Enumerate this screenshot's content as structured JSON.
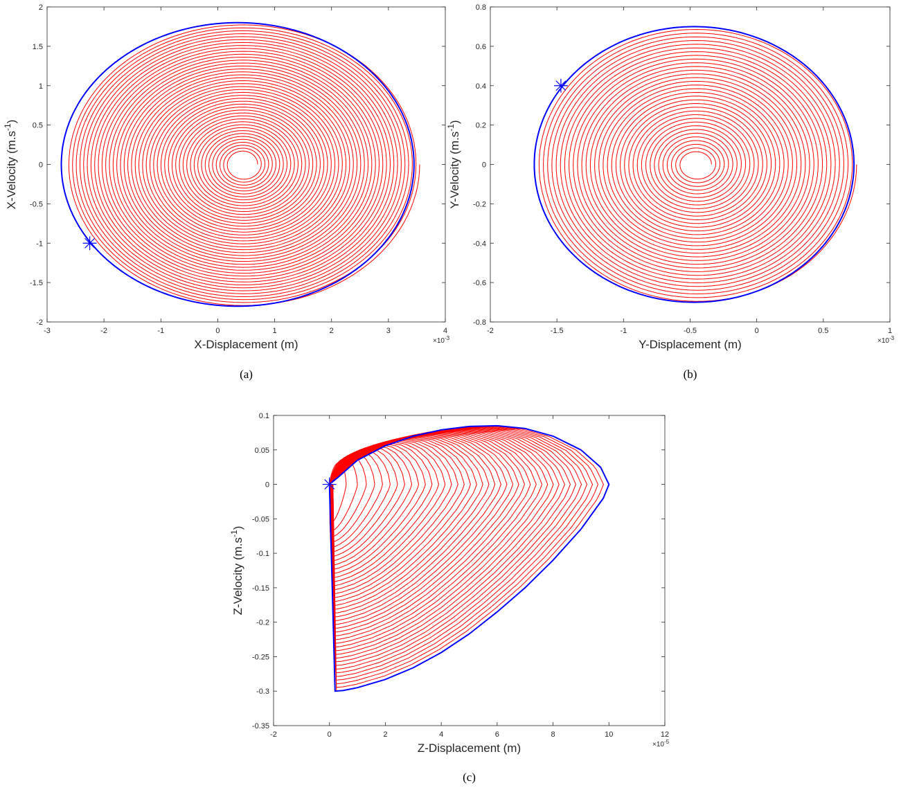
{
  "chart_data": [
    {
      "type": "line",
      "panel": "a",
      "caption": "(a)",
      "xlabel": "X-Displacement (m)",
      "ylabel_main": "X-Velocity (m.s",
      "ylabel_sup": "-1",
      "ylabel_tail": ")",
      "x_exponent": "×10",
      "x_exponent_sup": "-3",
      "xlim": [
        -3,
        4
      ],
      "ylim": [
        -2,
        2
      ],
      "xticks": [
        -3,
        -2,
        -1,
        0,
        1,
        2,
        3,
        4
      ],
      "xtick_labels": [
        "-3",
        "-2",
        "-1",
        "0",
        "1",
        "2",
        "3",
        "4"
      ],
      "yticks": [
        -2,
        -1.5,
        -1,
        -0.5,
        0,
        0.5,
        1,
        1.5,
        2
      ],
      "ytick_labels": [
        "-2",
        "-1.5",
        "-1",
        "-0.5",
        "0",
        "0.5",
        "1",
        "1.5",
        "2"
      ],
      "series": [
        {
          "color": "#ff0000",
          "center": [
            0.45,
            0.0
          ],
          "inner_radius": [
            0.25,
            0.16
          ],
          "outer_radius": [
            3.1,
            1.8
          ],
          "turns": 44,
          "shape": "spiral"
        },
        {
          "color": "#0000ff",
          "center": [
            0.35,
            0.0
          ],
          "radius": [
            3.1,
            1.8
          ],
          "shape": "limit-cycle"
        }
      ],
      "marker": {
        "x": -2.25,
        "y": -1.0,
        "color": "#0000ff",
        "symbol": "asterisk"
      },
      "grid": false
    },
    {
      "type": "line",
      "panel": "b",
      "caption": "(b)",
      "xlabel": "Y-Displacement (m)",
      "ylabel_main": "Y-Velocity (m.s",
      "ylabel_sup": "-1",
      "ylabel_tail": ")",
      "x_exponent": "×10",
      "x_exponent_sup": "-3",
      "xlim": [
        -2,
        1
      ],
      "ylim": [
        -0.8,
        0.8
      ],
      "xticks": [
        -2,
        -1.5,
        -1,
        -0.5,
        0,
        0.5,
        1
      ],
      "xtick_labels": [
        "-2",
        "-1.5",
        "-1",
        "-0.5",
        "0",
        "0.5",
        "1"
      ],
      "yticks": [
        -0.8,
        -0.6,
        -0.4,
        -0.2,
        0,
        0.2,
        0.4,
        0.6,
        0.8
      ],
      "ytick_labels": [
        "-0.8",
        "-0.6",
        "-0.4",
        "-0.2",
        "0",
        "0.2",
        "0.4",
        "0.6",
        "0.8"
      ],
      "series": [
        {
          "color": "#ff0000",
          "center": [
            -0.45,
            0.0
          ],
          "inner_radius": [
            0.11,
            0.06
          ],
          "outer_radius": [
            1.2,
            0.7
          ],
          "turns": 34,
          "shape": "spiral"
        },
        {
          "color": "#0000ff",
          "center": [
            -0.47,
            0.0
          ],
          "radius": [
            1.2,
            0.7
          ],
          "shape": "limit-cycle"
        }
      ],
      "marker": {
        "x": -1.47,
        "y": 0.4,
        "color": "#0000ff",
        "symbol": "asterisk"
      },
      "grid": false
    },
    {
      "type": "line",
      "panel": "c",
      "caption": "(c)",
      "xlabel": "Z-Displacement (m)",
      "ylabel_main": "Z-Velocity (m.s",
      "ylabel_sup": "-1",
      "ylabel_tail": ")",
      "x_exponent": "×10",
      "x_exponent_sup": "-5",
      "xlim": [
        -2,
        12
      ],
      "ylim": [
        -0.35,
        0.1
      ],
      "xticks": [
        -2,
        0,
        2,
        4,
        6,
        8,
        10,
        12
      ],
      "xtick_labels": [
        "-2",
        "0",
        "2",
        "4",
        "6",
        "8",
        "10",
        "12"
      ],
      "yticks": [
        -0.35,
        -0.3,
        -0.25,
        -0.2,
        -0.15,
        -0.1,
        -0.05,
        0,
        0.05,
        0.1
      ],
      "ytick_labels": [
        "-0.35",
        "-0.3",
        "-0.25",
        "-0.2",
        "-0.15",
        "-0.1",
        "-0.05",
        "0",
        "0.05",
        "0.1"
      ],
      "series": [
        {
          "color": "#ff0000",
          "shape": "nested-loops",
          "loops": 42,
          "x_max_range": [
            0.6,
            10.0
          ]
        },
        {
          "color": "#0000ff",
          "shape": "envelope",
          "points": [
            [
              0.0,
              0.0
            ],
            [
              0.3,
              0.01
            ],
            [
              1.0,
              0.035
            ],
            [
              2.0,
              0.056
            ],
            [
              3.0,
              0.07
            ],
            [
              4.0,
              0.079
            ],
            [
              5.0,
              0.084
            ],
            [
              6.0,
              0.085
            ],
            [
              7.0,
              0.081
            ],
            [
              8.0,
              0.07
            ],
            [
              9.0,
              0.05
            ],
            [
              9.7,
              0.025
            ],
            [
              10.0,
              0.0
            ],
            [
              9.8,
              -0.02
            ],
            [
              9.0,
              -0.065
            ],
            [
              8.0,
              -0.11
            ],
            [
              7.0,
              -0.15
            ],
            [
              6.0,
              -0.185
            ],
            [
              5.0,
              -0.217
            ],
            [
              4.0,
              -0.244
            ],
            [
              3.0,
              -0.266
            ],
            [
              2.0,
              -0.283
            ],
            [
              1.0,
              -0.295
            ],
            [
              0.5,
              -0.299
            ],
            [
              0.2,
              -0.3
            ],
            [
              0.0,
              0.0
            ]
          ]
        }
      ],
      "marker": {
        "x": 0.0,
        "y": 0.0,
        "color": "#0000ff",
        "symbol": "asterisk"
      },
      "grid": false
    }
  ]
}
